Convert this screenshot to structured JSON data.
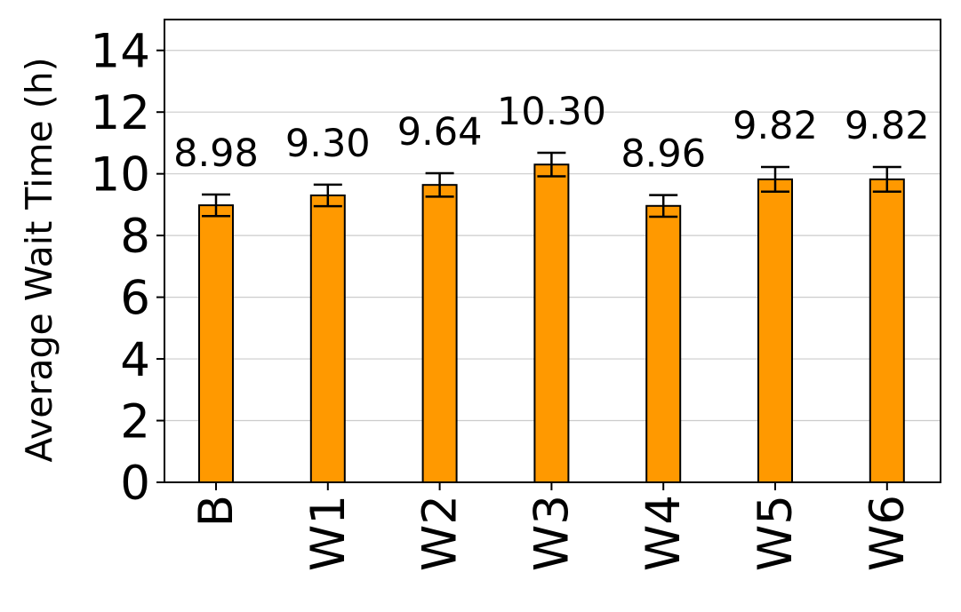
{
  "chart_data": {
    "type": "bar",
    "title": "",
    "xlabel": "",
    "ylabel": "Average Wait Time (h)",
    "categories": [
      "B",
      "W1",
      "W2",
      "W3",
      "W4",
      "W5",
      "W6"
    ],
    "values": [
      8.98,
      9.3,
      9.64,
      10.3,
      8.96,
      9.82,
      9.82
    ],
    "errors": [
      0.35,
      0.35,
      0.38,
      0.38,
      0.35,
      0.4,
      0.4
    ],
    "value_labels": [
      "8.98",
      "9.30",
      "9.64",
      "10.30",
      "8.96",
      "9.82",
      "9.82"
    ],
    "ylim": [
      0,
      15
    ],
    "yticks": [
      0,
      2,
      4,
      6,
      8,
      10,
      12,
      14
    ],
    "ytick_labels": [
      "0",
      "2",
      "4",
      "6",
      "8",
      "10",
      "12",
      "14"
    ],
    "grid": "horizontal",
    "bar_color": "#ff9900",
    "edge_color": "#000000",
    "grid_color": "#cccccc"
  }
}
